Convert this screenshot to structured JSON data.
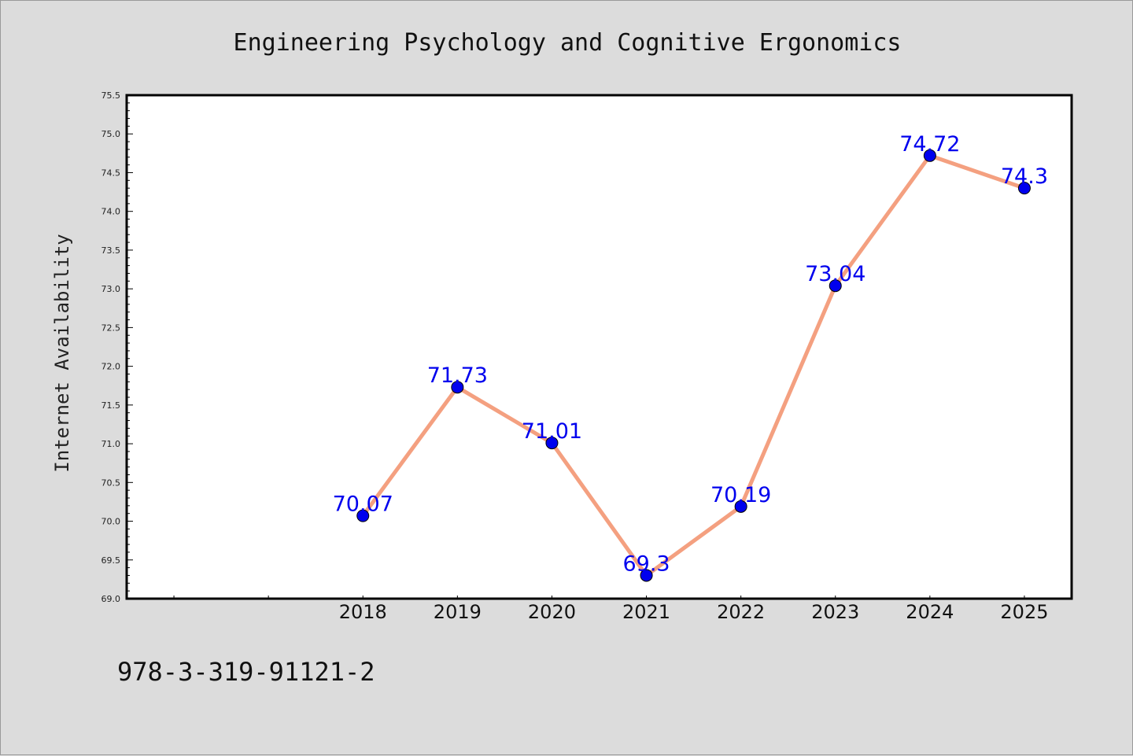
{
  "chart_data": {
    "type": "line",
    "title": "Engineering Psychology and Cognitive Ergonomics",
    "xlabel": "",
    "ylabel": "Internet Availability",
    "x": [
      "2018",
      "2019",
      "2020",
      "2021",
      "2022",
      "2023",
      "2024",
      "2025"
    ],
    "series": [
      {
        "values": [
          70.07,
          71.73,
          71.01,
          69.3,
          70.19,
          73.04,
          74.72,
          74.3
        ],
        "labels": [
          "70.07",
          "71.73",
          "71.01",
          "69.3",
          "70.19",
          "73.04",
          "74.72",
          "74.3"
        ],
        "line_color": "#f4a080",
        "marker_color": "#0000ee",
        "label_color": "#0000ee"
      }
    ],
    "ylim": [
      69.0,
      75.5
    ],
    "yticks": [
      "69.0",
      "69.5",
      "70.0",
      "70.5",
      "71.0",
      "71.5",
      "72.0",
      "72.5",
      "73.0",
      "73.5",
      "74.0",
      "74.5",
      "75.0",
      "75.5"
    ],
    "xlim": [
      2015.5,
      2025.5
    ],
    "grid": false,
    "legend": "none"
  },
  "footer": {
    "isbn": "978-3-319-91121-2"
  },
  "colors": {
    "background": "#dcdcdc",
    "plot_background": "#ffffff",
    "axis": "#000000"
  }
}
